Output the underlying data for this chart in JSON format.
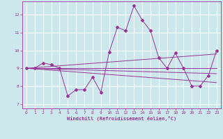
{
  "xlabel": "Windchill (Refroidissement éolien,°C)",
  "background_color": "#cce8ec",
  "line_color": "#993399",
  "grid_color": "#ffffff",
  "xlim": [
    -0.5,
    23.5
  ],
  "ylim": [
    6.75,
    12.75
  ],
  "xticks": [
    0,
    1,
    2,
    3,
    4,
    5,
    6,
    7,
    8,
    9,
    10,
    11,
    12,
    13,
    14,
    15,
    16,
    17,
    18,
    19,
    20,
    21,
    22,
    23
  ],
  "yticks": [
    7,
    8,
    9,
    10,
    11,
    12
  ],
  "main_data_x": [
    0,
    1,
    2,
    3,
    4,
    5,
    6,
    7,
    8,
    9,
    10,
    11,
    12,
    13,
    14,
    15,
    16,
    17,
    18,
    19,
    20,
    21,
    22,
    23
  ],
  "main_data_y": [
    9.0,
    9.0,
    9.3,
    9.2,
    9.0,
    7.45,
    7.8,
    7.8,
    8.5,
    7.65,
    9.9,
    11.3,
    11.1,
    12.5,
    11.7,
    11.1,
    9.6,
    9.0,
    9.85,
    9.0,
    8.0,
    8.0,
    8.6,
    10.0
  ],
  "trend_lines": [
    {
      "x": [
        0,
        23
      ],
      "y": [
        9.0,
        9.0
      ]
    },
    {
      "x": [
        0,
        23
      ],
      "y": [
        9.0,
        9.8
      ]
    },
    {
      "x": [
        0,
        23
      ],
      "y": [
        9.0,
        8.7
      ]
    },
    {
      "x": [
        0,
        23
      ],
      "y": [
        9.0,
        8.2
      ]
    }
  ]
}
